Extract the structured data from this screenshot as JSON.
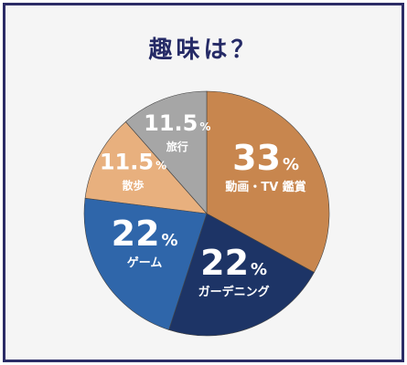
{
  "chart_data": {
    "type": "pie",
    "title": "趣味は？",
    "unit": "%",
    "slices": [
      {
        "label": "動画・TV 鑑賞",
        "value": 33,
        "value_text": "33",
        "color": "#c8864e"
      },
      {
        "label": "ガーデニング",
        "value": 22,
        "value_text": "22",
        "color": "#1d3466"
      },
      {
        "label": "ゲーム",
        "value": 22,
        "value_text": "22",
        "color": "#2f66aa"
      },
      {
        "label": "散歩",
        "value": 11.5,
        "value_text": "11.5",
        "color": "#e8b07e"
      },
      {
        "label": "旅行",
        "value": 11.5,
        "value_text": "11.5",
        "color": "#a6a6a6"
      }
    ]
  }
}
